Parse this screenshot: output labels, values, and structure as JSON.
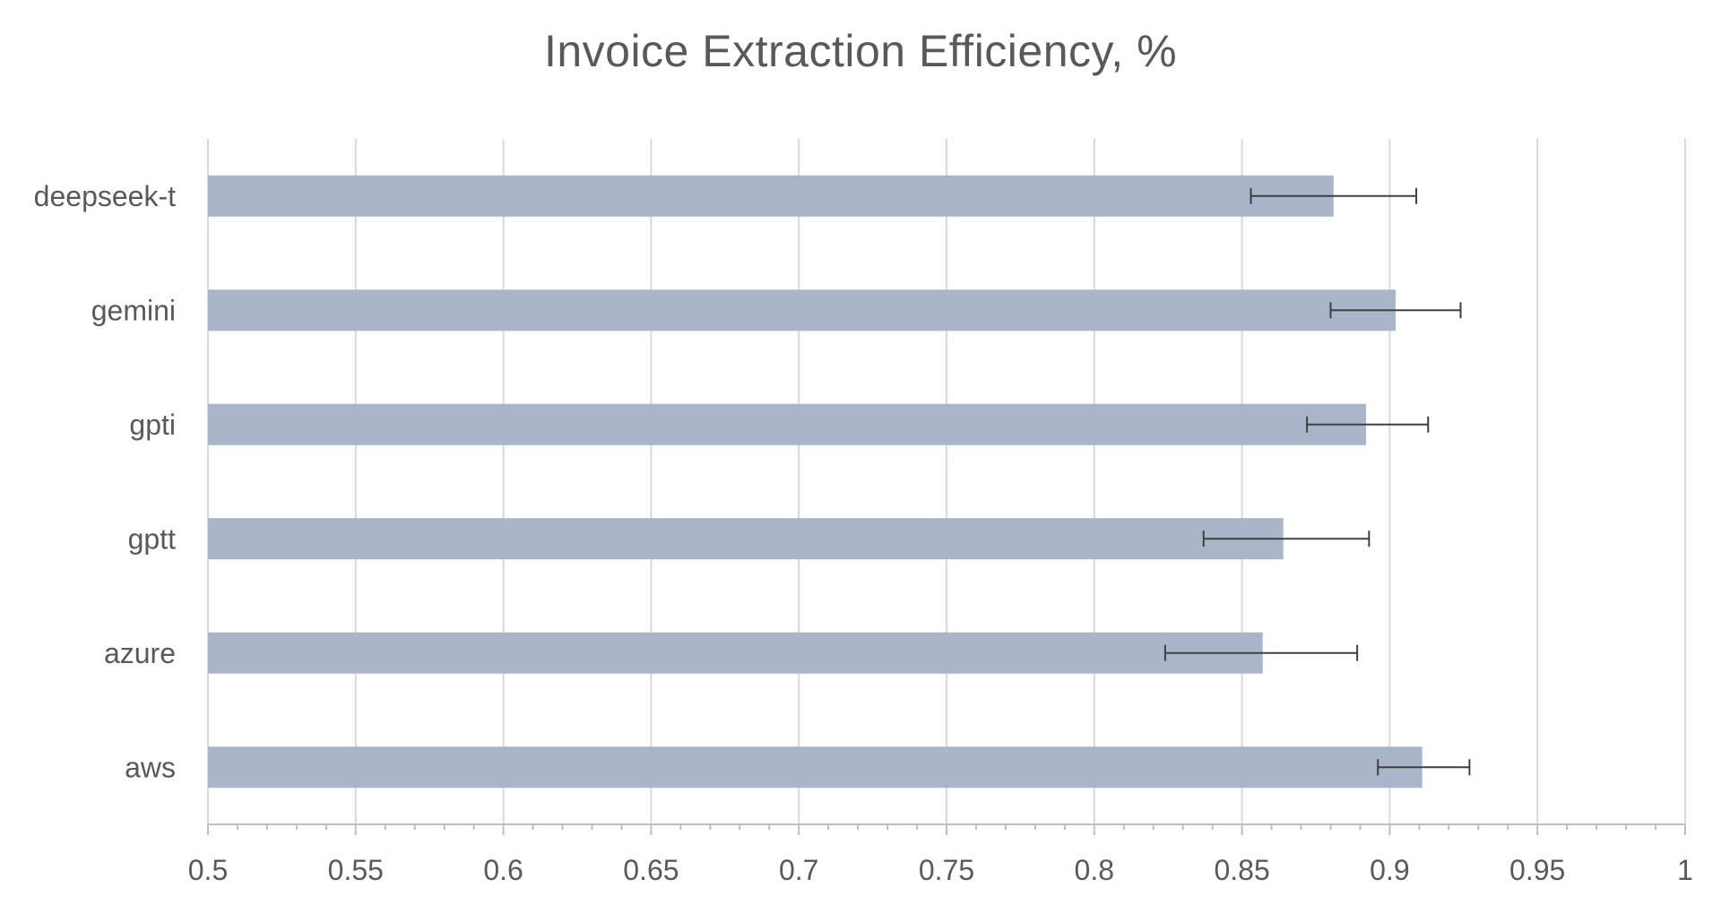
{
  "chart_data": {
    "type": "bar",
    "orientation": "horizontal",
    "title": "Invoice Extraction Efficiency, %",
    "xlabel": "",
    "ylabel": "",
    "categories": [
      "deepseek-t",
      "gemini",
      "gpti",
      "gptt",
      "azure",
      "aws"
    ],
    "series": [
      {
        "values": [
          0.881,
          0.902,
          0.892,
          0.864,
          0.857,
          0.911
        ],
        "error_low": [
          0.853,
          0.88,
          0.872,
          0.837,
          0.824,
          0.896
        ],
        "error_high": [
          0.909,
          0.924,
          0.913,
          0.893,
          0.889,
          0.927
        ],
        "color": "#a9b5c8"
      }
    ],
    "xlim": [
      0.5,
      1
    ],
    "xticks": [
      "0.5",
      "0.55",
      "0.6",
      "0.65",
      "0.7",
      "0.75",
      "0.8",
      "0.85",
      "0.9",
      "0.95",
      "1"
    ],
    "grid": true,
    "legend": "none",
    "colors": {
      "bar": "#a9b5c8",
      "grid": "#d9d9d9",
      "axis": "#bfbfbf",
      "errorbar": "#404040",
      "text": "#595959"
    }
  }
}
